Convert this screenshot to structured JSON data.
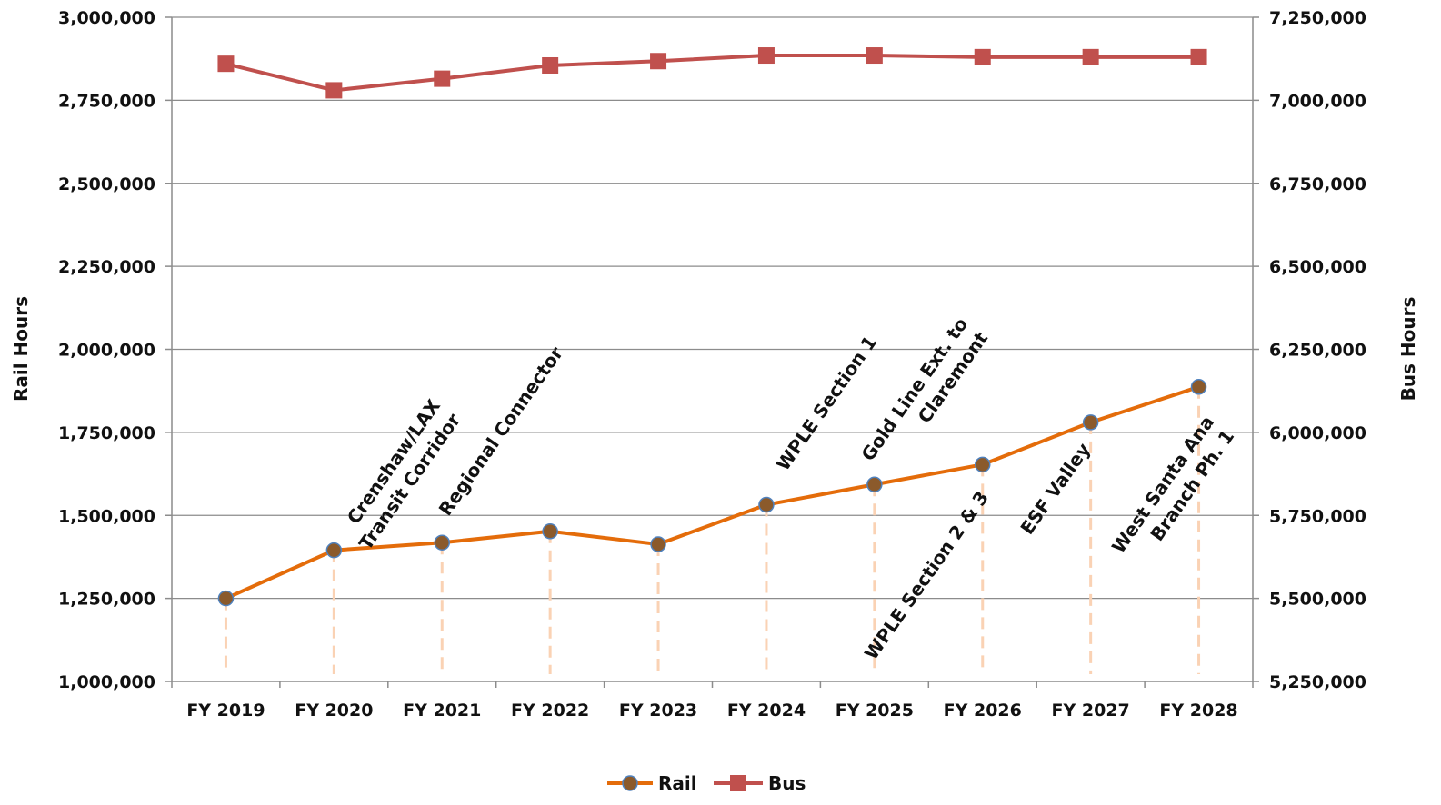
{
  "chart_data": {
    "type": "line",
    "categories": [
      "FY 2019",
      "FY 2020",
      "FY 2021",
      "FY 2022",
      "FY 2023",
      "FY 2024",
      "FY 2025",
      "FY 2026",
      "FY 2027",
      "FY 2028"
    ],
    "series": [
      {
        "name": "Rail",
        "axis": "left",
        "color": "#E46C0A",
        "marker": "circle",
        "values": [
          1250000,
          1395000,
          1418000,
          1452000,
          1413000,
          1532000,
          1593000,
          1653000,
          1780000,
          1887000
        ]
      },
      {
        "name": "Bus",
        "axis": "right",
        "color": "#C0504D",
        "marker": "square",
        "values": [
          7110000,
          7030000,
          7065000,
          7105000,
          7118000,
          7135000,
          7135000,
          7130000,
          7130000,
          7130000
        ]
      }
    ],
    "ylabel": "Rail Hours",
    "y2label": "Bus Hours",
    "ylim": [
      1000000,
      3000000
    ],
    "y2lim": [
      5250000,
      7250000
    ],
    "yticks": [
      "1,000,000",
      "1,250,000",
      "1,500,000",
      "1,750,000",
      "2,000,000",
      "2,250,000",
      "2,500,000",
      "2,750,000",
      "3,000,000"
    ],
    "y2ticks": [
      "5,250,000",
      "5,500,000",
      "5,750,000",
      "6,000,000",
      "6,250,000",
      "6,500,000",
      "6,750,000",
      "7,000,000",
      "7,250,000"
    ],
    "grid": true,
    "legend": "bottom-center",
    "drop_line_color": "#FAD2B4",
    "annotations": [
      {
        "category": "FY 2020",
        "lines": [
          "Crenshaw/LAX",
          "Transit Corridor"
        ]
      },
      {
        "category": "FY 2021",
        "lines": [
          "Regional Connector"
        ]
      },
      {
        "category": "FY 2024",
        "lines": [
          "WPLE Section 1"
        ]
      },
      {
        "category": "FY 2025",
        "lines": [
          "Gold Line Ext. to",
          "Claremont"
        ]
      },
      {
        "category": "FY 2026",
        "lines": [
          "WPLE Section 2 & 3"
        ]
      },
      {
        "category": "FY 2027",
        "lines": [
          "ESF Valley"
        ]
      },
      {
        "category": "FY 2028",
        "lines": [
          "West Santa Ana",
          "Branch Ph. 1"
        ]
      }
    ]
  }
}
